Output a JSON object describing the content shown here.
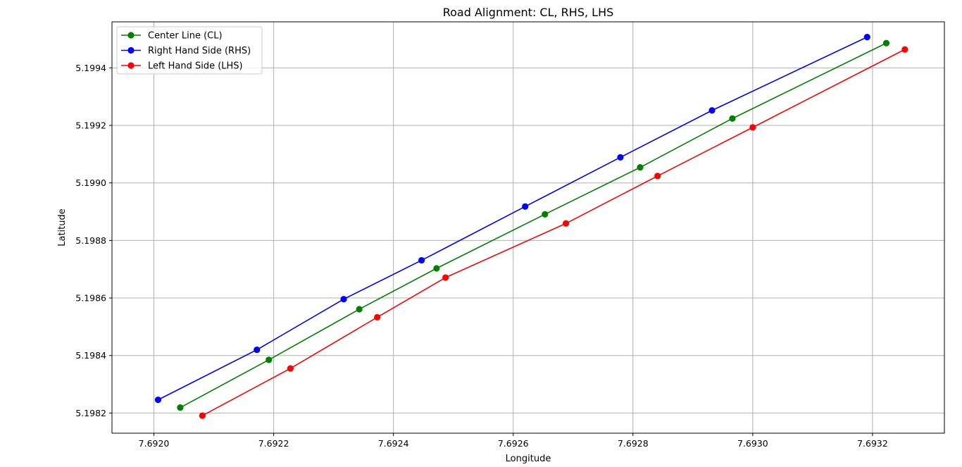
{
  "chart_data": {
    "type": "line",
    "title": "Road Alignment: CL, RHS, LHS",
    "xlabel": "Longitude",
    "ylabel": "Latitude",
    "xlim": [
      7.69193,
      7.69332
    ],
    "ylim": [
      5.19813,
      5.19956
    ],
    "xticks": [
      "7.6920",
      "7.6922",
      "7.6924",
      "7.6926",
      "7.6928",
      "7.6930",
      "7.6932"
    ],
    "yticks": [
      "5.1982",
      "5.1984",
      "5.1986",
      "5.1988",
      "5.1990",
      "5.1992",
      "5.1994"
    ],
    "grid": true,
    "legend_position": "top-left",
    "series": [
      {
        "name": "Center Line (CL)",
        "color": "#008000",
        "x": [
          7.692044,
          7.692192,
          7.692343,
          7.692472,
          7.692653,
          7.692812,
          7.692966,
          7.693223
        ],
        "y": [
          5.198219,
          5.198385,
          5.198561,
          5.198703,
          5.198891,
          5.199054,
          5.199224,
          5.199486
        ]
      },
      {
        "name": "Right Hand Side (RHS)",
        "color": "#0000ff",
        "x": [
          7.692007,
          7.692172,
          7.692317,
          7.692447,
          7.69262,
          7.692779,
          7.692932,
          7.693191
        ],
        "y": [
          5.198246,
          5.19842,
          5.198596,
          5.198731,
          5.198918,
          5.199089,
          5.199252,
          5.199507
        ]
      },
      {
        "name": "Left Hand Side (LHS)",
        "color": "#ff0000",
        "x": [
          7.692081,
          7.692228,
          7.692373,
          7.692487,
          7.692688,
          7.692841,
          7.693,
          7.693254
        ],
        "y": [
          5.198191,
          5.198355,
          5.198533,
          5.198671,
          5.198859,
          5.199024,
          5.199193,
          5.199464
        ]
      }
    ]
  }
}
